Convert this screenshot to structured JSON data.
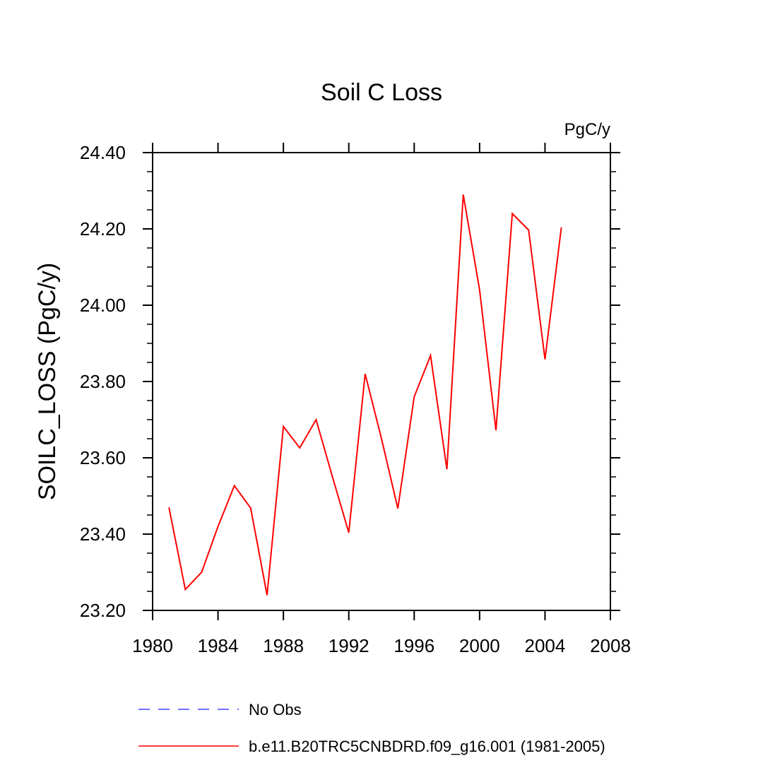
{
  "chart_data": {
    "type": "line",
    "title": "Soil C Loss",
    "units": "PgC/y",
    "ylabel": "SOILC_LOSS  (PgC/y)",
    "xlabel": "",
    "xlim": [
      1980,
      2008
    ],
    "ylim": [
      23.2,
      24.4
    ],
    "x_ticks": [
      1980,
      1984,
      1988,
      1992,
      1996,
      2000,
      2004,
      2008
    ],
    "y_ticks": [
      "23.20",
      "23.40",
      "23.60",
      "23.80",
      "24.00",
      "24.20",
      "24.40"
    ],
    "legend_position": "bottom",
    "series": [
      {
        "name": "No Obs",
        "color": "#4040ff",
        "style": "dashed",
        "x": [],
        "values": []
      },
      {
        "name": "b.e11.B20TRC5CNBDRD.f09_g16.001 (1981-2005)",
        "color": "#ff0000",
        "style": "solid",
        "x": [
          1981,
          1982,
          1983,
          1984,
          1985,
          1986,
          1987,
          1988,
          1989,
          1990,
          1991,
          1992,
          1993,
          1994,
          1995,
          1996,
          1997,
          1998,
          1999,
          2000,
          2001,
          2002,
          2003,
          2004,
          2005
        ],
        "values": [
          23.47,
          23.255,
          23.3,
          23.42,
          23.527,
          23.468,
          23.24,
          23.682,
          23.626,
          23.7,
          23.55,
          23.404,
          23.82,
          23.65,
          23.467,
          23.76,
          23.868,
          23.57,
          24.29,
          24.04,
          23.672,
          24.24,
          24.197,
          23.858,
          24.204
        ]
      }
    ]
  }
}
